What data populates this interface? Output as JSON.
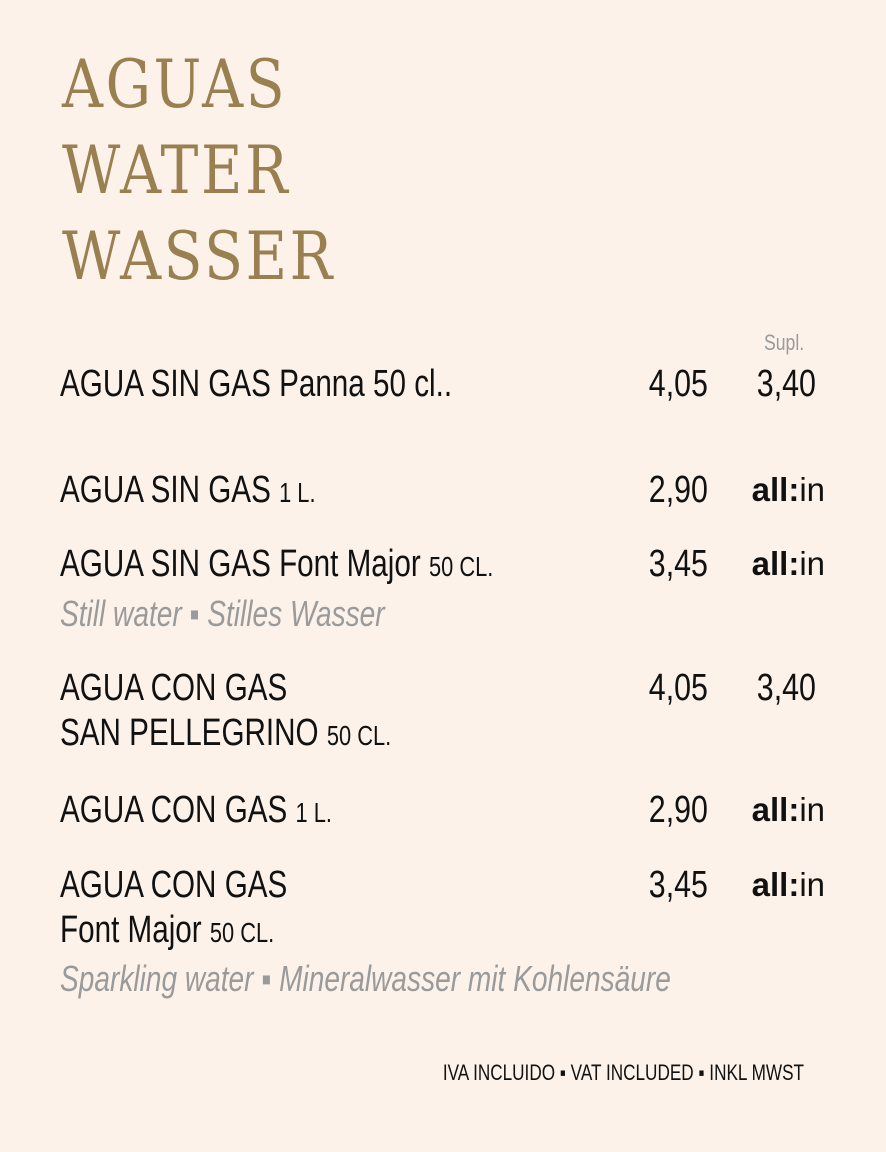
{
  "title": [
    "AGUAS",
    "WATER",
    "WASSER"
  ],
  "supl_label": "Supl.",
  "items": [
    {
      "name": "AGUA SIN GAS Panna 50 cl..",
      "size": "",
      "price": "4,05",
      "supl": "3,40"
    },
    {
      "name": "AGUA SIN GAS",
      "size": "1 L.",
      "price": "2,90",
      "allin_bold": "all:",
      "allin_rest": "in"
    },
    {
      "name": "AGUA SIN GAS Font Major",
      "size": "50 CL.",
      "price": "3,45",
      "allin_bold": "all:",
      "allin_rest": "in"
    },
    {
      "name": "AGUA CON GAS",
      "name2": "SAN PELLEGRINO",
      "size": "50 CL.",
      "price": "4,05",
      "supl": "3,40"
    },
    {
      "name": "AGUA CON GAS",
      "size": "1 L.",
      "price": "2,90",
      "allin_bold": "all:",
      "allin_rest": "in"
    },
    {
      "name": "AGUA CON GAS",
      "name2": "Font Major",
      "size": "50 CL.",
      "price": "3,45",
      "allin_bold": "all:",
      "allin_rest": "in"
    }
  ],
  "still_desc": "Still water ▪ Stilles Wasser",
  "sparkling_desc": "Sparkling water ▪ Mineralwasser mit Kohlensäure",
  "footer": "IVA INCLUIDO ▪ VAT INCLUDED ▪ INKL MWST",
  "colors": {
    "background": "#fdf2ea",
    "title": "#9a8050",
    "subtext": "#9a9a9a"
  }
}
